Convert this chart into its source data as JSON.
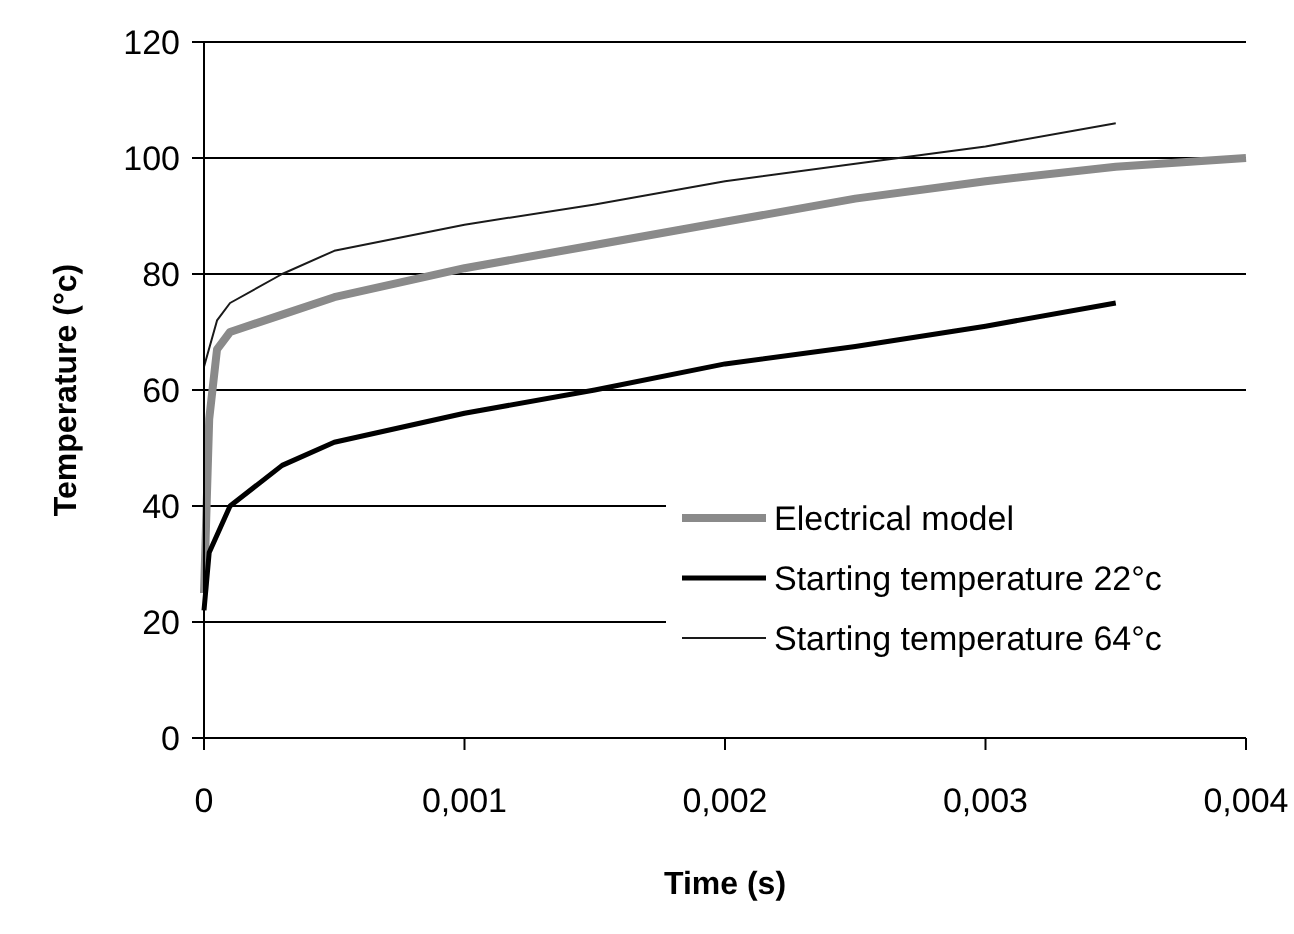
{
  "chart_data": {
    "type": "line",
    "xlabel": "Time (s)",
    "ylabel": "Temperature (°c)",
    "xlim": [
      0,
      0.004
    ],
    "ylim": [
      0,
      120
    ],
    "xticks": [
      0,
      {
        "value": 0.001,
        "label": "0,001"
      },
      {
        "value": 0.002,
        "label": "0,002"
      },
      {
        "value": 0.003,
        "label": "0,003"
      },
      {
        "value": 0.004,
        "label": "0,004"
      }
    ],
    "yticks": [
      0,
      20,
      40,
      60,
      80,
      100,
      120
    ],
    "grid": "y",
    "legend": "bottom right",
    "marker": "none",
    "line_style": "solid",
    "series": [
      {
        "name": "Electrical model",
        "color": "#8a8a8a",
        "x": [
          0,
          2e-05,
          5e-05,
          0.0001,
          0.0003,
          0.0005,
          0.001,
          0.0015,
          0.002,
          0.0025,
          0.003,
          0.0035,
          0.004
        ],
        "values": [
          25,
          55,
          67,
          70,
          73,
          76,
          81,
          85,
          89,
          93,
          96,
          98.5,
          100
        ]
      },
      {
        "name": "Starting temperature 22°c",
        "color": "#000000",
        "x": [
          0,
          2e-05,
          0.0001,
          0.0003,
          0.0005,
          0.001,
          0.0015,
          0.002,
          0.0025,
          0.003,
          0.0035
        ],
        "values": [
          22,
          32,
          40,
          47,
          51,
          56,
          60,
          64.5,
          67.5,
          71,
          75
        ]
      },
      {
        "name": "Starting temperature 64°c",
        "color": "#1a1a1a",
        "x": [
          0,
          5e-05,
          0.0001,
          0.0003,
          0.0005,
          0.001,
          0.0015,
          0.002,
          0.0025,
          0.003,
          0.0035
        ],
        "values": [
          64,
          72,
          75,
          80,
          84,
          88.5,
          92,
          96,
          99,
          102,
          106
        ]
      }
    ]
  }
}
